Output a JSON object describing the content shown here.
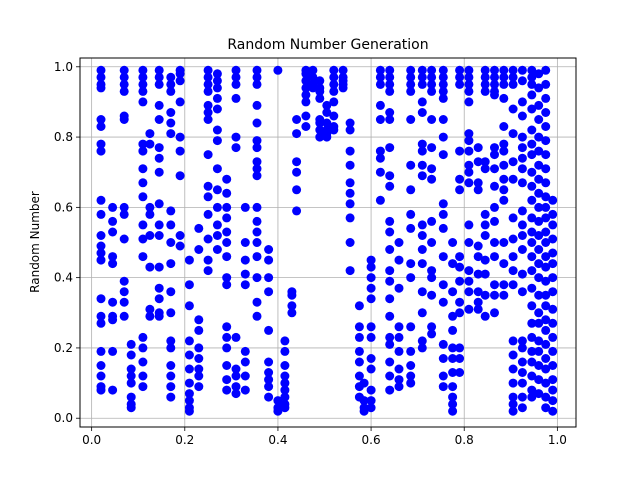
{
  "chart_data": {
    "type": "scatter",
    "title": "Random Number Generation",
    "xlabel": "",
    "ylabel": "Random Number",
    "xlim": [
      -0.025,
      1.04
    ],
    "ylim": [
      -0.025,
      1.025
    ],
    "xticks": [
      "0.0",
      "0.2",
      "0.4",
      "0.6",
      "0.8",
      "1.0"
    ],
    "yticks": [
      "0.0",
      "0.2",
      "0.4",
      "0.6",
      "0.8",
      "1.0"
    ],
    "grid": true,
    "marker_color": "#0000ff",
    "columns": [
      {
        "x": 0.02,
        "y": [
          0.99,
          0.97,
          0.95,
          0.94,
          0.85,
          0.83,
          0.78,
          0.76,
          0.62,
          0.58,
          0.52,
          0.49,
          0.47,
          0.45,
          0.34,
          0.29,
          0.27,
          0.19,
          0.15,
          0.12,
          0.09,
          0.08
        ]
      },
      {
        "x": 0.045,
        "y": [
          0.6,
          0.56,
          0.53,
          0.46,
          0.44,
          0.33,
          0.29,
          0.28,
          0.19,
          0.08
        ]
      },
      {
        "x": 0.07,
        "y": [
          0.99,
          0.97,
          0.95,
          0.93,
          0.86,
          0.85,
          0.6,
          0.58,
          0.51,
          0.39,
          0.36,
          0.33,
          0.29
        ]
      },
      {
        "x": 0.085,
        "y": [
          0.21,
          0.18,
          0.14,
          0.12,
          0.1,
          0.06,
          0.04,
          0.03
        ]
      },
      {
        "x": 0.11,
        "y": [
          0.99,
          0.97,
          0.95,
          0.93,
          0.9,
          0.78,
          0.76,
          0.71,
          0.67,
          0.63,
          0.55,
          0.51,
          0.46,
          0.23,
          0.2,
          0.16,
          0.12,
          0.09
        ]
      },
      {
        "x": 0.125,
        "y": [
          0.81,
          0.78,
          0.6,
          0.58,
          0.52,
          0.43,
          0.31,
          0.29
        ]
      },
      {
        "x": 0.145,
        "y": [
          0.99,
          0.97,
          0.95,
          0.89,
          0.85,
          0.77,
          0.74,
          0.7,
          0.61,
          0.55,
          0.52,
          0.43,
          0.37,
          0.34,
          0.3,
          0.29
        ]
      },
      {
        "x": 0.17,
        "y": [
          0.97,
          0.95,
          0.93,
          0.87,
          0.84,
          0.81,
          0.59,
          0.55,
          0.5,
          0.44,
          0.36,
          0.3,
          0.22,
          0.2,
          0.15,
          0.12,
          0.09,
          0.06
        ]
      },
      {
        "x": 0.19,
        "y": [
          0.99,
          0.98,
          0.96,
          0.9,
          0.8,
          0.76,
          0.69,
          0.52,
          0.49
        ]
      },
      {
        "x": 0.21,
        "y": [
          0.45,
          0.38,
          0.32,
          0.22,
          0.18,
          0.14,
          0.1,
          0.07,
          0.05,
          0.03,
          0.02
        ]
      },
      {
        "x": 0.23,
        "y": [
          0.54,
          0.48,
          0.28,
          0.25,
          0.2,
          0.17,
          0.14,
          0.12,
          0.09
        ]
      },
      {
        "x": 0.25,
        "y": [
          0.99,
          0.97,
          0.95,
          0.93,
          0.89,
          0.87,
          0.85,
          0.75,
          0.66,
          0.63,
          0.58,
          0.51,
          0.45,
          0.42
        ]
      },
      {
        "x": 0.27,
        "y": [
          0.98,
          0.96,
          0.94,
          0.91,
          0.88,
          0.82,
          0.79,
          0.71,
          0.65,
          0.6,
          0.55,
          0.52,
          0.48
        ]
      },
      {
        "x": 0.29,
        "y": [
          0.68,
          0.64,
          0.6,
          0.57,
          0.53,
          0.5,
          0.46,
          0.4,
          0.38,
          0.26,
          0.23,
          0.2,
          0.15,
          0.11,
          0.08
        ]
      },
      {
        "x": 0.31,
        "y": [
          0.99,
          0.97,
          0.95,
          0.91,
          0.8,
          0.77,
          0.23,
          0.14,
          0.12,
          0.09,
          0.07
        ]
      },
      {
        "x": 0.33,
        "y": [
          0.6,
          0.5,
          0.45,
          0.41,
          0.38,
          0.19,
          0.16,
          0.12,
          0.08
        ]
      },
      {
        "x": 0.355,
        "y": [
          0.99,
          0.97,
          0.95,
          0.89,
          0.84,
          0.79,
          0.77,
          0.73,
          0.71,
          0.69,
          0.6,
          0.56,
          0.53,
          0.5,
          0.46,
          0.4,
          0.33,
          0.29
        ]
      },
      {
        "x": 0.38,
        "y": [
          0.48,
          0.45,
          0.4,
          0.36,
          0.25,
          0.16,
          0.13,
          0.11,
          0.09,
          0.06
        ]
      },
      {
        "x": 0.4,
        "y": [
          0.99,
          0.05,
          0.03,
          0.02
        ]
      },
      {
        "x": 0.415,
        "y": [
          0.22,
          0.19,
          0.15,
          0.12,
          0.1,
          0.08,
          0.06,
          0.04,
          0.03
        ]
      },
      {
        "x": 0.43,
        "y": [
          0.36,
          0.35,
          0.32,
          0.3
        ]
      },
      {
        "x": 0.44,
        "y": [
          0.85,
          0.81,
          0.73,
          0.7,
          0.65,
          0.59
        ]
      },
      {
        "x": 0.46,
        "y": [
          0.99,
          0.98,
          0.96,
          0.94,
          0.92,
          0.9,
          0.86,
          0.83
        ]
      },
      {
        "x": 0.475,
        "y": [
          0.99,
          0.97,
          0.95,
          0.94
        ]
      },
      {
        "x": 0.49,
        "y": [
          0.96,
          0.94,
          0.93,
          0.91,
          0.85,
          0.84,
          0.82,
          0.8
        ]
      },
      {
        "x": 0.505,
        "y": [
          0.89,
          0.87,
          0.84,
          0.82,
          0.81,
          0.8
        ]
      },
      {
        "x": 0.52,
        "y": [
          0.99,
          0.97,
          0.95,
          0.93,
          0.9,
          0.86,
          0.83,
          0.82
        ]
      },
      {
        "x": 0.54,
        "y": [
          0.99,
          0.97,
          0.96,
          0.95,
          0.94
        ]
      },
      {
        "x": 0.555,
        "y": [
          0.84,
          0.82,
          0.76,
          0.72,
          0.67,
          0.64,
          0.61,
          0.57,
          0.5,
          0.42
        ]
      },
      {
        "x": 0.575,
        "y": [
          0.32,
          0.26,
          0.23,
          0.19,
          0.16,
          0.12,
          0.09,
          0.06
        ]
      },
      {
        "x": 0.585,
        "y": [
          0.1,
          0.05,
          0.03,
          0.02
        ]
      },
      {
        "x": 0.6,
        "y": [
          0.45,
          0.43,
          0.4,
          0.37,
          0.34,
          0.26,
          0.23,
          0.17,
          0.14,
          0.08,
          0.05,
          0.03
        ]
      },
      {
        "x": 0.62,
        "y": [
          0.99,
          0.97,
          0.95,
          0.89,
          0.85,
          0.76,
          0.74,
          0.7,
          0.62
        ]
      },
      {
        "x": 0.64,
        "y": [
          0.99,
          0.97,
          0.95,
          0.93,
          0.87,
          0.85,
          0.77,
          0.69,
          0.66,
          0.56,
          0.53,
          0.48,
          0.42,
          0.39,
          0.34,
          0.29,
          0.23,
          0.21,
          0.16,
          0.12,
          0.08
        ]
      },
      {
        "x": 0.66,
        "y": [
          0.5,
          0.45,
          0.37,
          0.26,
          0.23,
          0.19,
          0.14,
          0.11,
          0.09
        ]
      },
      {
        "x": 0.685,
        "y": [
          0.99,
          0.97,
          0.95,
          0.93,
          0.85,
          0.72,
          0.65,
          0.58,
          0.54,
          0.44,
          0.4,
          0.26,
          0.19,
          0.15,
          0.12,
          0.1
        ]
      },
      {
        "x": 0.71,
        "y": [
          0.99,
          0.97,
          0.95,
          0.9,
          0.87,
          0.78,
          0.76,
          0.72,
          0.69,
          0.55,
          0.52,
          0.48,
          0.44,
          0.36,
          0.3,
          0.22,
          0.2
        ]
      },
      {
        "x": 0.73,
        "y": [
          0.99,
          0.97,
          0.95,
          0.93,
          0.85,
          0.77,
          0.71,
          0.68,
          0.56,
          0.5,
          0.42,
          0.4,
          0.35,
          0.26,
          0.24
        ]
      },
      {
        "x": 0.755,
        "y": [
          0.99,
          0.97,
          0.95,
          0.93,
          0.91,
          0.85,
          0.8,
          0.75,
          0.61,
          0.58,
          0.54,
          0.46,
          0.38,
          0.33,
          0.21,
          0.17,
          0.12,
          0.09
        ]
      },
      {
        "x": 0.775,
        "y": [
          0.5,
          0.44,
          0.36,
          0.29,
          0.25,
          0.2,
          0.17,
          0.13,
          0.09,
          0.06,
          0.04,
          0.02
        ]
      },
      {
        "x": 0.79,
        "y": [
          0.99,
          0.97,
          0.95,
          0.76,
          0.68,
          0.65,
          0.46,
          0.43,
          0.39,
          0.33,
          0.3,
          0.2,
          0.17,
          0.13
        ]
      },
      {
        "x": 0.81,
        "y": [
          0.99,
          0.97,
          0.95,
          0.93,
          0.9,
          0.81,
          0.79,
          0.76,
          0.72,
          0.7,
          0.67,
          0.55,
          0.5,
          0.42,
          0.39,
          0.36,
          0.31
        ]
      },
      {
        "x": 0.83,
        "y": [
          0.77,
          0.73,
          0.67,
          0.65,
          0.49,
          0.46,
          0.41,
          0.36,
          0.33,
          0.31
        ]
      },
      {
        "x": 0.845,
        "y": [
          0.99,
          0.97,
          0.95,
          0.93,
          0.73,
          0.71,
          0.58,
          0.55,
          0.52,
          0.45,
          0.41,
          0.35,
          0.29
        ]
      },
      {
        "x": 0.865,
        "y": [
          0.99,
          0.97,
          0.95,
          0.93,
          0.92,
          0.77,
          0.75,
          0.71,
          0.66,
          0.6,
          0.56,
          0.5,
          0.46,
          0.38,
          0.35,
          0.3
        ]
      },
      {
        "x": 0.885,
        "y": [
          0.99,
          0.97,
          0.95,
          0.91,
          0.83,
          0.78,
          0.76,
          0.72,
          0.68,
          0.65,
          0.62,
          0.5,
          0.44,
          0.38,
          0.35
        ]
      },
      {
        "x": 0.905,
        "y": [
          0.99,
          0.97,
          0.95,
          0.88,
          0.81,
          0.73,
          0.68,
          0.57,
          0.51,
          0.46,
          0.42,
          0.38,
          0.22,
          0.18,
          0.14,
          0.1,
          0.06,
          0.04,
          0.02
        ]
      },
      {
        "x": 0.925,
        "y": [
          0.99,
          0.96,
          0.9,
          0.86,
          0.8,
          0.77,
          0.74,
          0.71,
          0.67,
          0.59,
          0.55,
          0.52,
          0.48,
          0.41,
          0.36,
          0.22,
          0.2,
          0.16,
          0.13,
          0.1,
          0.06,
          0.03
        ]
      },
      {
        "x": 0.945,
        "y": [
          0.99,
          0.97,
          0.95,
          0.92,
          0.88,
          0.82,
          0.78,
          0.75,
          0.7,
          0.66,
          0.62,
          0.57,
          0.53,
          0.5,
          0.46,
          0.42,
          0.37,
          0.32,
          0.27,
          0.23,
          0.19,
          0.16,
          0.12,
          0.08,
          0.06
        ]
      },
      {
        "x": 0.96,
        "y": [
          0.98,
          0.94,
          0.89,
          0.85,
          0.8,
          0.76,
          0.72,
          0.68,
          0.64,
          0.6,
          0.56,
          0.52,
          0.48,
          0.44,
          0.4,
          0.35,
          0.3,
          0.27,
          0.22,
          0.19,
          0.15,
          0.11,
          0.07
        ]
      },
      {
        "x": 0.975,
        "y": [
          0.99,
          0.95,
          0.91,
          0.87,
          0.83,
          0.79,
          0.75,
          0.71,
          0.67,
          0.63,
          0.6,
          0.57,
          0.53,
          0.5,
          0.46,
          0.43,
          0.39,
          0.35,
          0.32,
          0.28,
          0.25,
          0.21,
          0.17,
          0.14,
          0.1,
          0.06,
          0.03
        ]
      },
      {
        "x": 0.99,
        "y": [
          0.62,
          0.58,
          0.55,
          0.51,
          0.47,
          0.44,
          0.4,
          0.36,
          0.31,
          0.27,
          0.23,
          0.19,
          0.15,
          0.11,
          0.08,
          0.05,
          0.02
        ]
      }
    ]
  }
}
